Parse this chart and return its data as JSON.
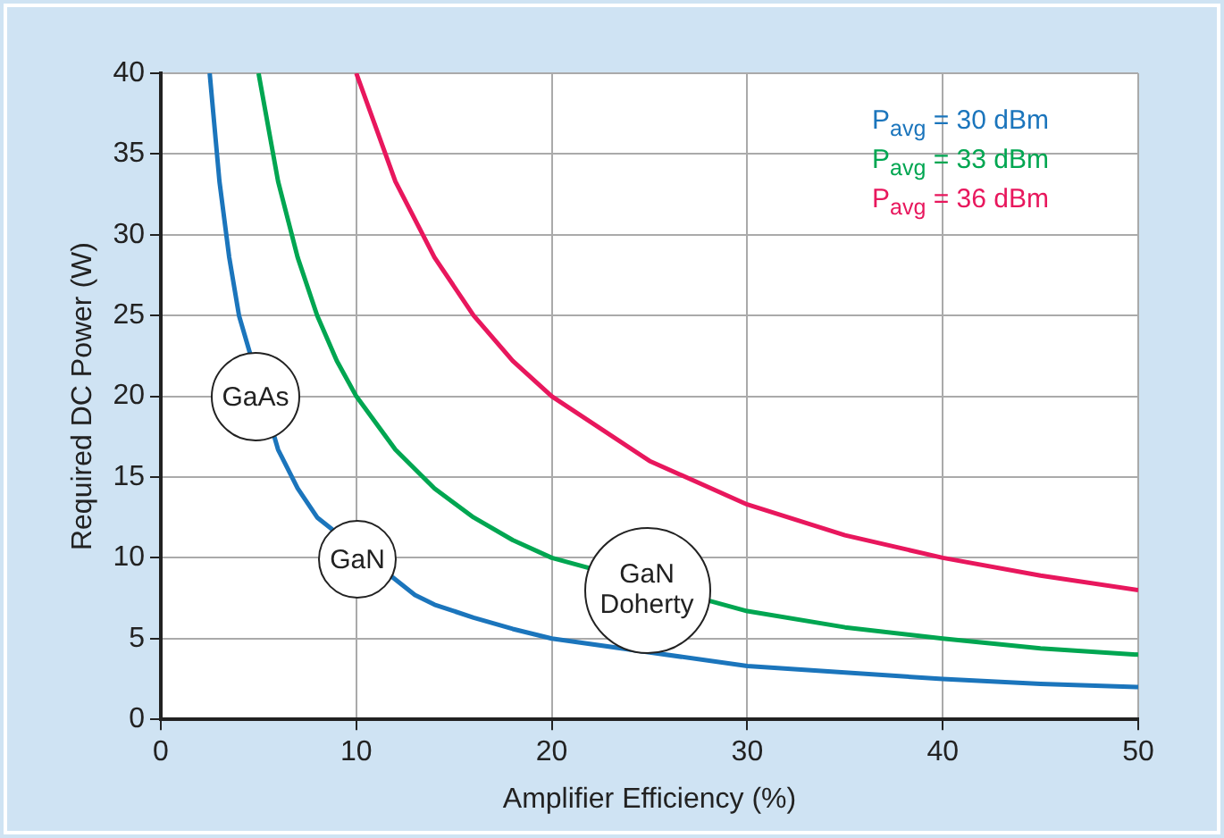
{
  "chart_data": {
    "type": "line",
    "xlabel": "Amplifier Efficiency (%)",
    "ylabel": "Required DC Power (W)",
    "xlim": [
      0,
      50
    ],
    "xticks": [
      0,
      10,
      20,
      30,
      40,
      50
    ],
    "ylim": [
      0,
      40
    ],
    "yticks": [
      0,
      5,
      10,
      15,
      20,
      25,
      30,
      35,
      40
    ],
    "grid": true,
    "legend": "top right",
    "marker": "none",
    "line_style": "solid",
    "series": [
      {
        "name": "P$_{avg}$ = 30 dBm",
        "color": "#1b75bc",
        "x": [
          2.5,
          3,
          3.5,
          4,
          6,
          7,
          8,
          13,
          14,
          16,
          18,
          20,
          30,
          35,
          40,
          45,
          50
        ],
        "values": [
          40,
          33.3,
          28.6,
          25,
          16.7,
          14.3,
          12.5,
          7.7,
          7.1,
          6.3,
          5.6,
          5,
          3.3,
          2.9,
          2.5,
          2.2,
          2
        ]
      },
      {
        "name": "P$_{avg}$ = 33 dBm",
        "color": "#00a651",
        "x": [
          5,
          6,
          7,
          8,
          9,
          10,
          12,
          14,
          16,
          18,
          20,
          30,
          35,
          40,
          45,
          50
        ],
        "values": [
          40,
          33.3,
          28.6,
          25,
          22.2,
          20,
          16.7,
          14.3,
          12.5,
          11.1,
          10,
          6.7,
          5.7,
          5,
          4.4,
          4
        ]
      },
      {
        "name": "P$_{avg}$ = 36 dBm",
        "color": "#e8175d",
        "x": [
          10,
          12,
          14,
          16,
          18,
          20,
          25,
          30,
          35,
          40,
          45,
          50
        ],
        "values": [
          40,
          33.3,
          28.6,
          25,
          22.2,
          20,
          16,
          13.3,
          11.4,
          10,
          8.9,
          8
        ]
      }
    ],
    "annotations": [
      "GaAs",
      "GaN",
      "GaN Doherty"
    ]
  }
}
